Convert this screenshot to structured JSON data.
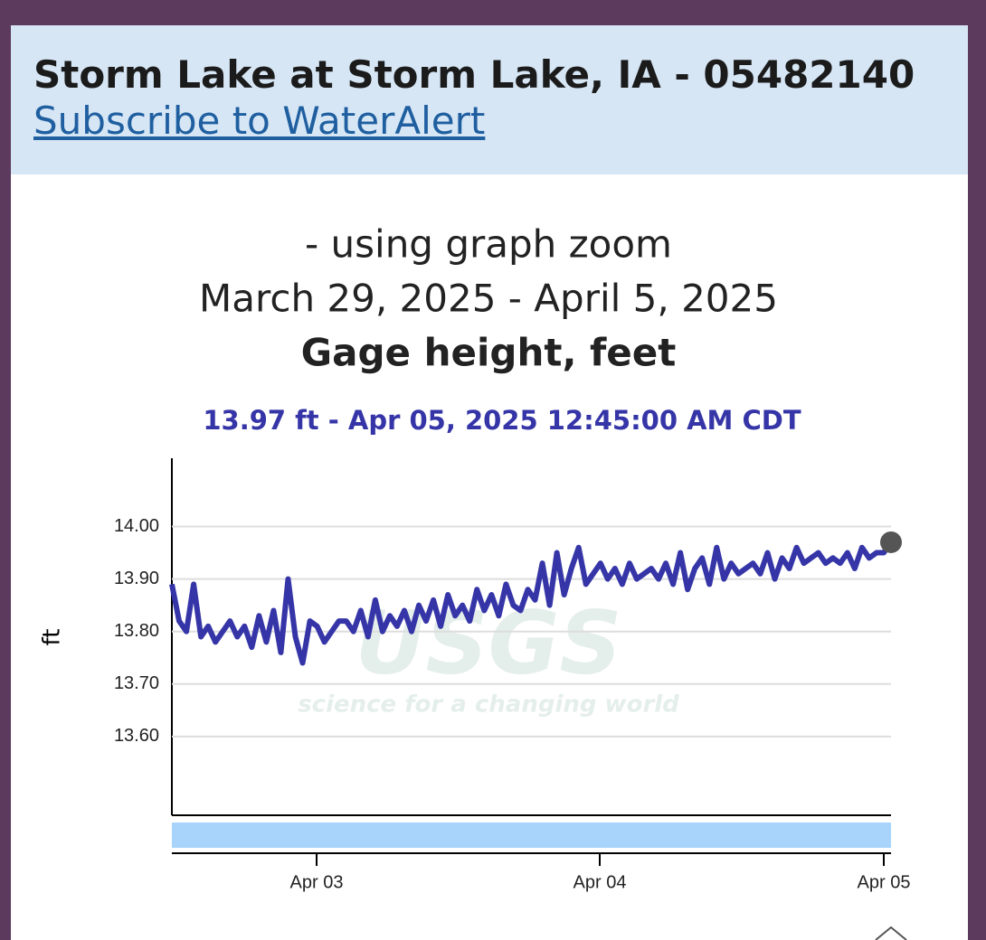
{
  "header": {
    "title": "Storm Lake at Storm Lake, IA - 05482140",
    "link": "Subscribe to WaterAlert"
  },
  "chart_data": {
    "type": "line",
    "subtitle": "- using graph zoom",
    "date_range": "March 29, 2025 - April 5, 2025",
    "title": "Gage height, feet",
    "tooltip": "13.97 ft - Apr 05, 2025 12:45:00 AM CDT",
    "y_label": "ft",
    "watermark": {
      "logo": "USGS",
      "tagline": "science for a changing world"
    },
    "xtick_labels": [
      "Apr 03",
      "Apr 04",
      "Apr 05"
    ],
    "ylim": [
      13.45,
      14.13
    ],
    "yticks": [
      {
        "value": 13.6,
        "label": "13.60"
      },
      {
        "value": 13.7,
        "label": "13.70"
      },
      {
        "value": 13.8,
        "label": "13.80"
      },
      {
        "value": 13.9,
        "label": "13.90"
      },
      {
        "value": 14.0,
        "label": "14.00"
      }
    ],
    "grid": true,
    "series": [
      {
        "color": "#3535a8",
        "values": [
          13.89,
          13.82,
          13.8,
          13.89,
          13.79,
          13.81,
          13.78,
          13.8,
          13.82,
          13.79,
          13.81,
          13.77,
          13.83,
          13.78,
          13.84,
          13.76,
          13.9,
          13.79,
          13.74,
          13.82,
          13.81,
          13.78,
          13.8,
          13.82,
          13.82,
          13.8,
          13.84,
          13.79,
          13.86,
          13.8,
          13.83,
          13.81,
          13.84,
          13.8,
          13.85,
          13.82,
          13.86,
          13.81,
          13.87,
          13.83,
          13.85,
          13.82,
          13.88,
          13.84,
          13.87,
          13.83,
          13.89,
          13.85,
          13.84,
          13.88,
          13.86,
          13.93,
          13.85,
          13.95,
          13.87,
          13.92,
          13.96,
          13.89,
          13.91,
          13.93,
          13.9,
          13.92,
          13.89,
          13.93,
          13.9,
          13.91,
          13.92,
          13.9,
          13.93,
          13.89,
          13.95,
          13.88,
          13.92,
          13.94,
          13.89,
          13.96,
          13.9,
          13.93,
          13.91,
          13.92,
          13.93,
          13.91,
          13.95,
          13.9,
          13.94,
          13.92,
          13.96,
          13.93,
          13.94,
          13.95,
          13.93,
          13.94,
          13.93,
          13.95,
          13.92,
          13.96,
          13.94,
          13.95,
          13.95,
          13.97
        ]
      }
    ]
  }
}
